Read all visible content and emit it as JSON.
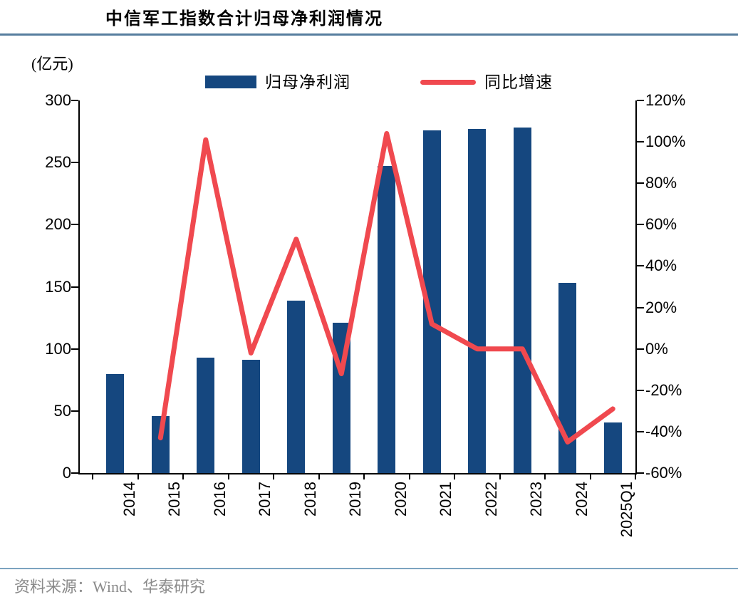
{
  "header": {
    "title": "中信军工指数合计归母净利润情况",
    "unit_label": "(亿元)"
  },
  "legend": {
    "bar_label": "归母净利润",
    "line_label": "同比增速"
  },
  "footer": {
    "source": "资料来源：Wind、华泰研究"
  },
  "colors": {
    "bar": "#15477F",
    "line": "#F0494F",
    "axis": "#000000",
    "title_rule": "#567D9E",
    "footer_rule": "#7BA3C0",
    "source_text": "#8A8A8A"
  },
  "chart_data": {
    "type": "bar+line",
    "title": "中信军工指数合计归母净利润情况",
    "categories": [
      "2014",
      "2015",
      "2016",
      "2017",
      "2018",
      "2019",
      "2020",
      "2021",
      "2022",
      "2023",
      "2024",
      "2025Q1"
    ],
    "series": [
      {
        "name": "归母净利润",
        "kind": "bar",
        "axis": "left",
        "unit": "亿元",
        "values": [
          80,
          46,
          93,
          91,
          139,
          121,
          247,
          276,
          277,
          278,
          153,
          41
        ]
      },
      {
        "name": "同比增速",
        "kind": "line",
        "axis": "right",
        "unit": "%",
        "values": [
          null,
          -43,
          101,
          -2,
          53,
          -12,
          104,
          12,
          0,
          0,
          -45,
          -29
        ]
      }
    ],
    "left_axis": {
      "label": "(亿元)",
      "min": 0,
      "max": 300,
      "step": 50,
      "ticks": [
        "300",
        "250",
        "200",
        "150",
        "100",
        "50",
        "0"
      ]
    },
    "right_axis": {
      "min": -60,
      "max": 120,
      "step": 20,
      "ticks": [
        "120%",
        "100%",
        "80%",
        "60%",
        "40%",
        "20%",
        "0%",
        "-20%",
        "-40%",
        "-60%"
      ]
    },
    "legend_position": "top",
    "grid": false,
    "x_tick_label_rotation": -90
  }
}
